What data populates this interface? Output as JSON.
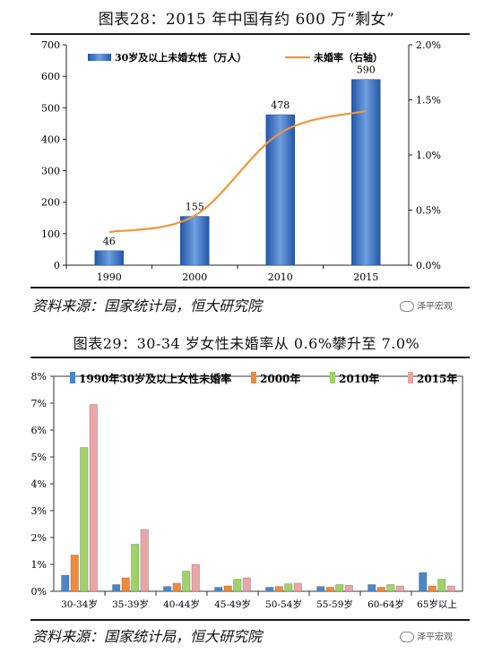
{
  "figures": [
    {
      "title": "图表28：2015 年中国有约 600 万“剩女”",
      "source": "资料来源：国家统计局，恒大研究院",
      "watermark": "泽平宏观"
    },
    {
      "title": "图表29：30-34 岁女性未婚率从 0.6%攀升至 7.0%",
      "source": "资料来源：国家统计局，恒大研究院",
      "watermark": "泽平宏观"
    }
  ],
  "colors": {
    "bar_blue": "#3b6fc0",
    "line_orange": "#f0963c",
    "c1990": "#4a86c8",
    "c2000": "#f08a3a",
    "c2010": "#9fd36a",
    "c2015": "#e8a6a6"
  },
  "chart_data": [
    {
      "type": "bar",
      "categories": [
        "1990",
        "2000",
        "2010",
        "2015"
      ],
      "series": [
        {
          "name": "30岁及以上未婚女性（万人）",
          "values": [
            46,
            155,
            478,
            590
          ],
          "axis": "left"
        },
        {
          "name": "未婚率（右轴）",
          "type": "line",
          "values": [
            0.3,
            0.45,
            1.2,
            1.4
          ],
          "axis": "right",
          "unit": "%"
        }
      ],
      "ylim": [
        0,
        700
      ],
      "yticks": [
        0,
        100,
        200,
        300,
        400,
        500,
        600,
        700
      ],
      "y2lim": [
        0,
        2.0
      ],
      "y2ticks": [
        "0.0%",
        "0.5%",
        "1.0%",
        "1.5%",
        "2.0%"
      ],
      "data_labels": [
        "46",
        "155",
        "478",
        "590"
      ],
      "legend": "top"
    },
    {
      "type": "bar",
      "categories": [
        "30-34岁",
        "35-39岁",
        "40-44岁",
        "45-49岁",
        "50-54岁",
        "55-59岁",
        "60-64岁",
        "65岁以上"
      ],
      "series": [
        {
          "name": "1990年30岁及以上女性未婚率",
          "values": [
            0.6,
            0.25,
            0.18,
            0.15,
            0.15,
            0.18,
            0.25,
            0.7
          ]
        },
        {
          "name": "2000年",
          "values": [
            1.35,
            0.5,
            0.3,
            0.2,
            0.18,
            0.15,
            0.15,
            0.2
          ]
        },
        {
          "name": "2010年",
          "values": [
            5.35,
            1.75,
            0.75,
            0.45,
            0.28,
            0.25,
            0.25,
            0.45
          ]
        },
        {
          "name": "2015年",
          "values": [
            6.95,
            2.3,
            1.0,
            0.5,
            0.3,
            0.22,
            0.2,
            0.2
          ]
        }
      ],
      "ylim": [
        0,
        8
      ],
      "yticks": [
        "0%",
        "1%",
        "2%",
        "3%",
        "4%",
        "5%",
        "6%",
        "7%",
        "8%"
      ],
      "legend": "top"
    }
  ]
}
